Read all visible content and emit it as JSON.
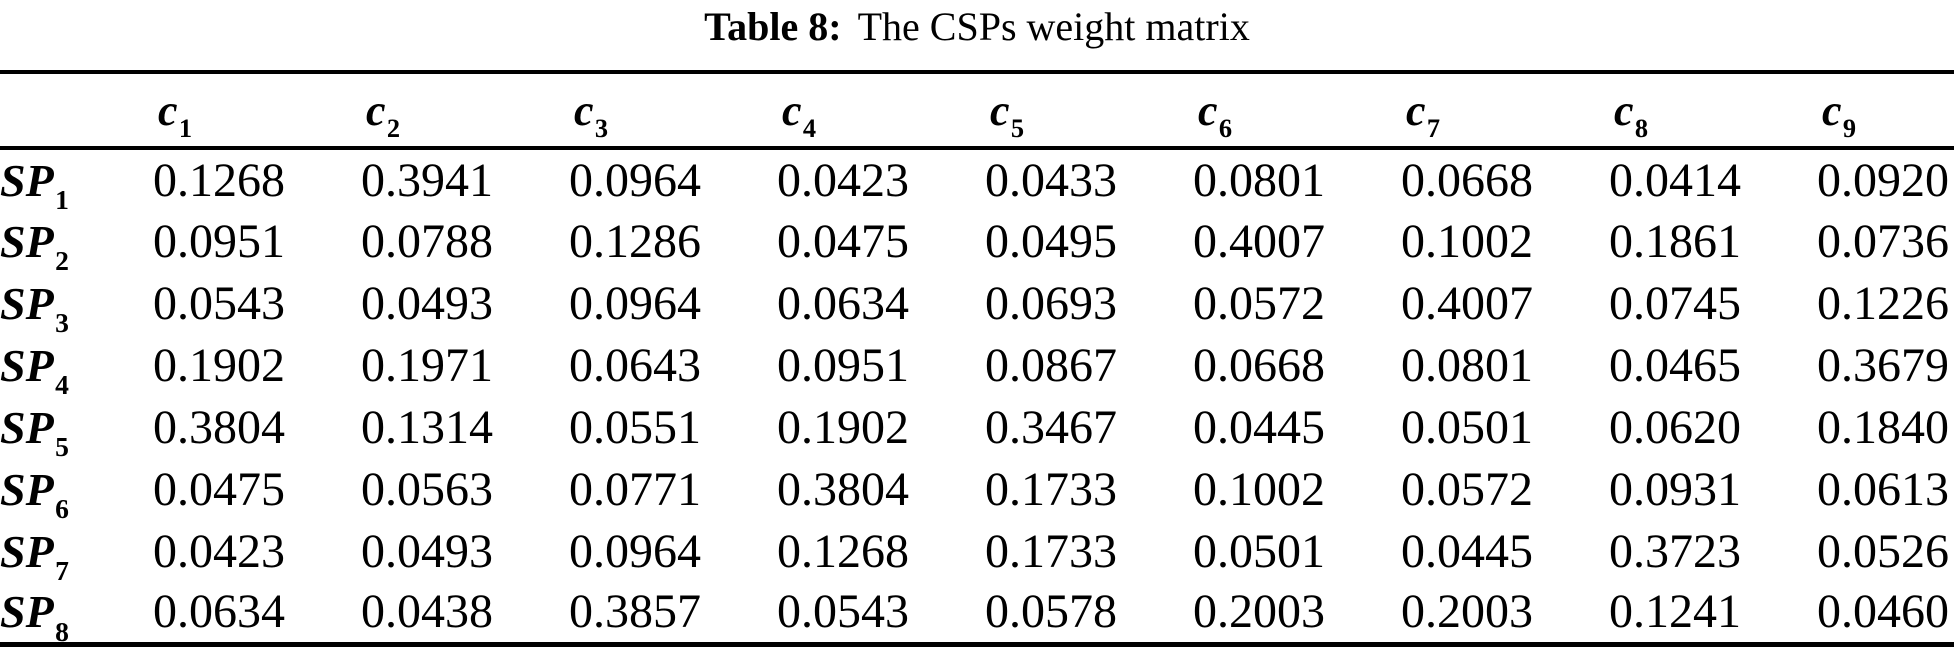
{
  "caption": {
    "label": "Table 8:",
    "text": "The CSPs weight matrix"
  },
  "table": {
    "column_headers": [
      {
        "base": "c",
        "sub": "1"
      },
      {
        "base": "c",
        "sub": "2"
      },
      {
        "base": "c",
        "sub": "3"
      },
      {
        "base": "c",
        "sub": "4"
      },
      {
        "base": "c",
        "sub": "5"
      },
      {
        "base": "c",
        "sub": "6"
      },
      {
        "base": "c",
        "sub": "7"
      },
      {
        "base": "c",
        "sub": "8"
      },
      {
        "base": "c",
        "sub": "9"
      }
    ],
    "rows": [
      {
        "label": {
          "base": "SP",
          "sub": "1"
        },
        "values": [
          "0.1268",
          "0.3941",
          "0.0964",
          "0.0423",
          "0.0433",
          "0.0801",
          "0.0668",
          "0.0414",
          "0.0920"
        ]
      },
      {
        "label": {
          "base": "SP",
          "sub": "2"
        },
        "values": [
          "0.0951",
          "0.0788",
          "0.1286",
          "0.0475",
          "0.0495",
          "0.4007",
          "0.1002",
          "0.1861",
          "0.0736"
        ]
      },
      {
        "label": {
          "base": "SP",
          "sub": "3"
        },
        "values": [
          "0.0543",
          "0.0493",
          "0.0964",
          "0.0634",
          "0.0693",
          "0.0572",
          "0.4007",
          "0.0745",
          "0.1226"
        ]
      },
      {
        "label": {
          "base": "SP",
          "sub": "4"
        },
        "values": [
          "0.1902",
          "0.1971",
          "0.0643",
          "0.0951",
          "0.0867",
          "0.0668",
          "0.0801",
          "0.0465",
          "0.3679"
        ]
      },
      {
        "label": {
          "base": "SP",
          "sub": "5"
        },
        "values": [
          "0.3804",
          "0.1314",
          "0.0551",
          "0.1902",
          "0.3467",
          "0.0445",
          "0.0501",
          "0.0620",
          "0.1840"
        ]
      },
      {
        "label": {
          "base": "SP",
          "sub": "6"
        },
        "values": [
          "0.0475",
          "0.0563",
          "0.0771",
          "0.3804",
          "0.1733",
          "0.1002",
          "0.0572",
          "0.0931",
          "0.0613"
        ]
      },
      {
        "label": {
          "base": "SP",
          "sub": "7"
        },
        "values": [
          "0.0423",
          "0.0493",
          "0.0964",
          "0.1268",
          "0.1733",
          "0.0501",
          "0.0445",
          "0.3723",
          "0.0526"
        ]
      },
      {
        "label": {
          "base": "SP",
          "sub": "8"
        },
        "values": [
          "0.0634",
          "0.0438",
          "0.3857",
          "0.0543",
          "0.0578",
          "0.2003",
          "0.2003",
          "0.1241",
          "0.0460"
        ]
      }
    ]
  },
  "colors": {
    "text": "#000000",
    "rule": "#000000",
    "background": "#ffffff"
  }
}
